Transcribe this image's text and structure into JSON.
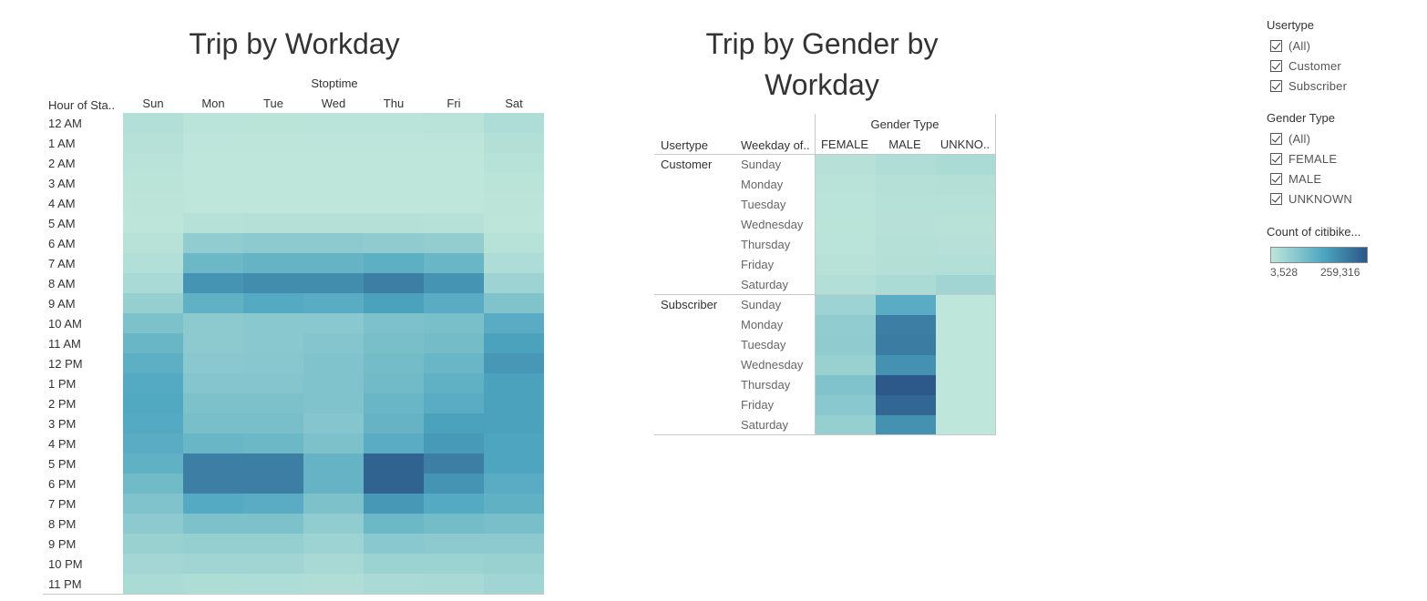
{
  "chart_data": [
    {
      "type": "heatmap",
      "title": "Trip by Workday",
      "column_header": "Stoptime",
      "row_header": "Hour of Sta..",
      "x": [
        "Sun",
        "Mon",
        "Tue",
        "Wed",
        "Thu",
        "Fri",
        "Sat"
      ],
      "y": [
        "12 AM",
        "1 AM",
        "2 AM",
        "3 AM",
        "4 AM",
        "5 AM",
        "6 AM",
        "7 AM",
        "8 AM",
        "9 AM",
        "10 AM",
        "11 AM",
        "12 PM",
        "1 PM",
        "2 PM",
        "3 PM",
        "4 PM",
        "5 PM",
        "6 PM",
        "7 PM",
        "8 PM",
        "9 PM",
        "10 PM",
        "11 PM"
      ],
      "values": [
        [
          20000,
          10000,
          9000,
          9500,
          10000,
          11000,
          25000
        ],
        [
          15000,
          6000,
          5500,
          6000,
          6000,
          6500,
          18000
        ],
        [
          11000,
          4500,
          4000,
          4000,
          4000,
          4500,
          13000
        ],
        [
          8000,
          3800,
          3600,
          3600,
          3700,
          4000,
          9000
        ],
        [
          7000,
          4000,
          3800,
          3900,
          4000,
          4200,
          7000
        ],
        [
          6500,
          15000,
          16000,
          16000,
          16000,
          15000,
          6500
        ],
        [
          12000,
          60000,
          65000,
          65000,
          62000,
          58000,
          13000
        ],
        [
          20000,
          105000,
          115000,
          115000,
          125000,
          110000,
          25000
        ],
        [
          30000,
          170000,
          180000,
          180000,
          200000,
          170000,
          45000
        ],
        [
          55000,
          120000,
          135000,
          130000,
          150000,
          130000,
          80000
        ],
        [
          85000,
          65000,
          70000,
          70000,
          85000,
          90000,
          130000
        ],
        [
          110000,
          65000,
          70000,
          75000,
          90000,
          95000,
          150000
        ],
        [
          125000,
          70000,
          72000,
          80000,
          95000,
          110000,
          165000
        ],
        [
          135000,
          75000,
          75000,
          80000,
          100000,
          120000,
          150000
        ],
        [
          140000,
          85000,
          85000,
          80000,
          110000,
          130000,
          150000
        ],
        [
          135000,
          90000,
          90000,
          75000,
          115000,
          150000,
          150000
        ],
        [
          130000,
          110000,
          105000,
          85000,
          130000,
          160000,
          145000
        ],
        [
          120000,
          200000,
          200000,
          115000,
          240000,
          200000,
          145000
        ],
        [
          100000,
          200000,
          200000,
          115000,
          240000,
          170000,
          130000
        ],
        [
          80000,
          135000,
          130000,
          85000,
          165000,
          135000,
          120000
        ],
        [
          65000,
          85000,
          85000,
          60000,
          105000,
          95000,
          90000
        ],
        [
          50000,
          55000,
          55000,
          45000,
          70000,
          65000,
          65000
        ],
        [
          38000,
          40000,
          40000,
          32000,
          48000,
          48000,
          50000
        ],
        [
          28000,
          24000,
          25000,
          22000,
          30000,
          32000,
          40000
        ]
      ]
    },
    {
      "type": "heatmap",
      "title": "Trip by Gender by Workday",
      "column_header": "Gender Type",
      "row_headers": [
        "Usertype",
        "Weekday of.."
      ],
      "x": [
        "FEMALE",
        "MALE",
        "UNKNO.."
      ],
      "groups": [
        {
          "usertype": "Customer",
          "days": [
            "Sunday",
            "Monday",
            "Tuesday",
            "Wednesday",
            "Thursday",
            "Friday",
            "Saturday"
          ],
          "values": [
            [
              14000,
              22000,
              28000
            ],
            [
              11000,
              16000,
              18000
            ],
            [
              10000,
              15000,
              15000
            ],
            [
              9000,
              14000,
              12000
            ],
            [
              10000,
              16000,
              14000
            ],
            [
              12000,
              18000,
              20000
            ],
            [
              20000,
              28000,
              40000
            ]
          ]
        },
        {
          "usertype": "Subscriber",
          "days": [
            "Sunday",
            "Monday",
            "Tuesday",
            "Wednesday",
            "Thursday",
            "Friday",
            "Saturday"
          ],
          "values": [
            [
              45000,
              130000,
              4000
            ],
            [
              60000,
              200000,
              4500
            ],
            [
              62000,
              205000,
              4500
            ],
            [
              50000,
              175000,
              4200
            ],
            [
              80000,
              255000,
              4600
            ],
            [
              70000,
              235000,
              4500
            ],
            [
              55000,
              175000,
              4000
            ]
          ]
        }
      ]
    }
  ],
  "legend_range": {
    "min": 3528,
    "max": 259316
  },
  "color_ramp": {
    "low": "#bfe6da",
    "mid": "#4da6c0",
    "high": "#2b5687"
  },
  "filters": {
    "usertype": {
      "title": "Usertype",
      "items": [
        "(All)",
        "Customer",
        "Subscriber"
      ]
    },
    "gender": {
      "title": "Gender Type",
      "items": [
        "(All)",
        "FEMALE",
        "MALE",
        "UNKNOWN"
      ]
    }
  },
  "color_legend": {
    "title": "Count of citibike...",
    "min_label": "3,528",
    "max_label": "259,316"
  },
  "chart2_title_lines": [
    "Trip by Gender by",
    "Workday"
  ]
}
